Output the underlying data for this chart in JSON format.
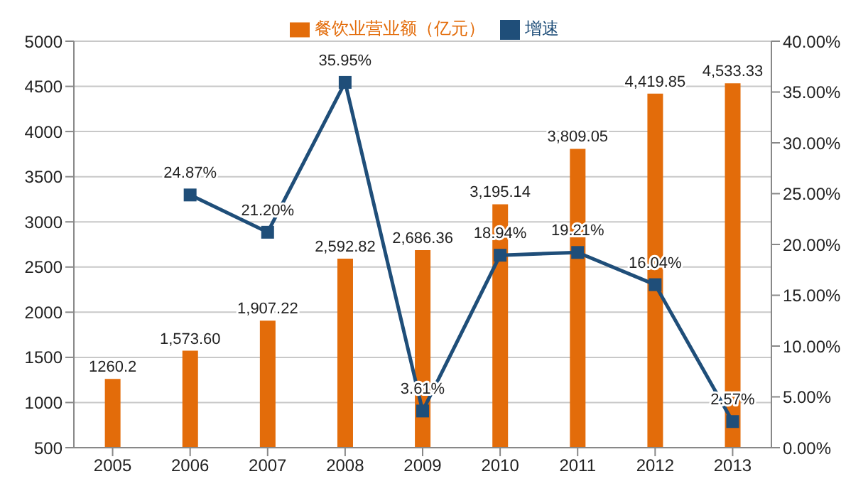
{
  "chart_data": {
    "type": "bar",
    "categories": [
      "2005",
      "2006",
      "2007",
      "2008",
      "2009",
      "2010",
      "2011",
      "2012",
      "2013"
    ],
    "series": [
      {
        "name": "餐饮业营业额（亿元）",
        "color": "#e36c0a",
        "values": [
          1260.2,
          1573.6,
          1907.22,
          2592.82,
          2686.36,
          3195.14,
          3809.05,
          4419.85,
          4533.33
        ],
        "value_labels": [
          "1260.2",
          "1,573.60",
          "1,907.22",
          "2,592.82",
          "2,686.36",
          "3,195.14",
          "3,809.05",
          "4,419.85",
          "4,533.33"
        ]
      },
      {
        "name": "增速",
        "type": "line",
        "axis": "y2",
        "color": "#1f4e79",
        "marker": "square",
        "values": [
          null,
          24.87,
          21.2,
          35.95,
          3.61,
          18.94,
          19.21,
          16.04,
          2.57
        ],
        "value_labels": [
          null,
          "24.87%",
          "21.20%",
          "35.95%",
          "3.61%",
          "18.94%",
          "19.21%",
          "16.04%",
          "2.57%"
        ]
      }
    ],
    "ylim": [
      500,
      5000
    ],
    "yticks": [
      500,
      1000,
      1500,
      2000,
      2500,
      3000,
      3500,
      4000,
      4500,
      5000
    ],
    "y2lim": [
      0,
      40
    ],
    "y2ticks": [
      {
        "value": 0,
        "label": "0.00%"
      },
      {
        "value": 5,
        "label": "5.00%"
      },
      {
        "value": 10,
        "label": "10.00%"
      },
      {
        "value": 15,
        "label": "15.00%"
      },
      {
        "value": 20,
        "label": "20.00%"
      },
      {
        "value": 25,
        "label": "25.00%"
      },
      {
        "value": 30,
        "label": "30.00%"
      },
      {
        "value": 35,
        "label": "35.00%"
      },
      {
        "value": 40,
        "label": "40.00%"
      }
    ],
    "grid": "y",
    "legend": "top"
  }
}
